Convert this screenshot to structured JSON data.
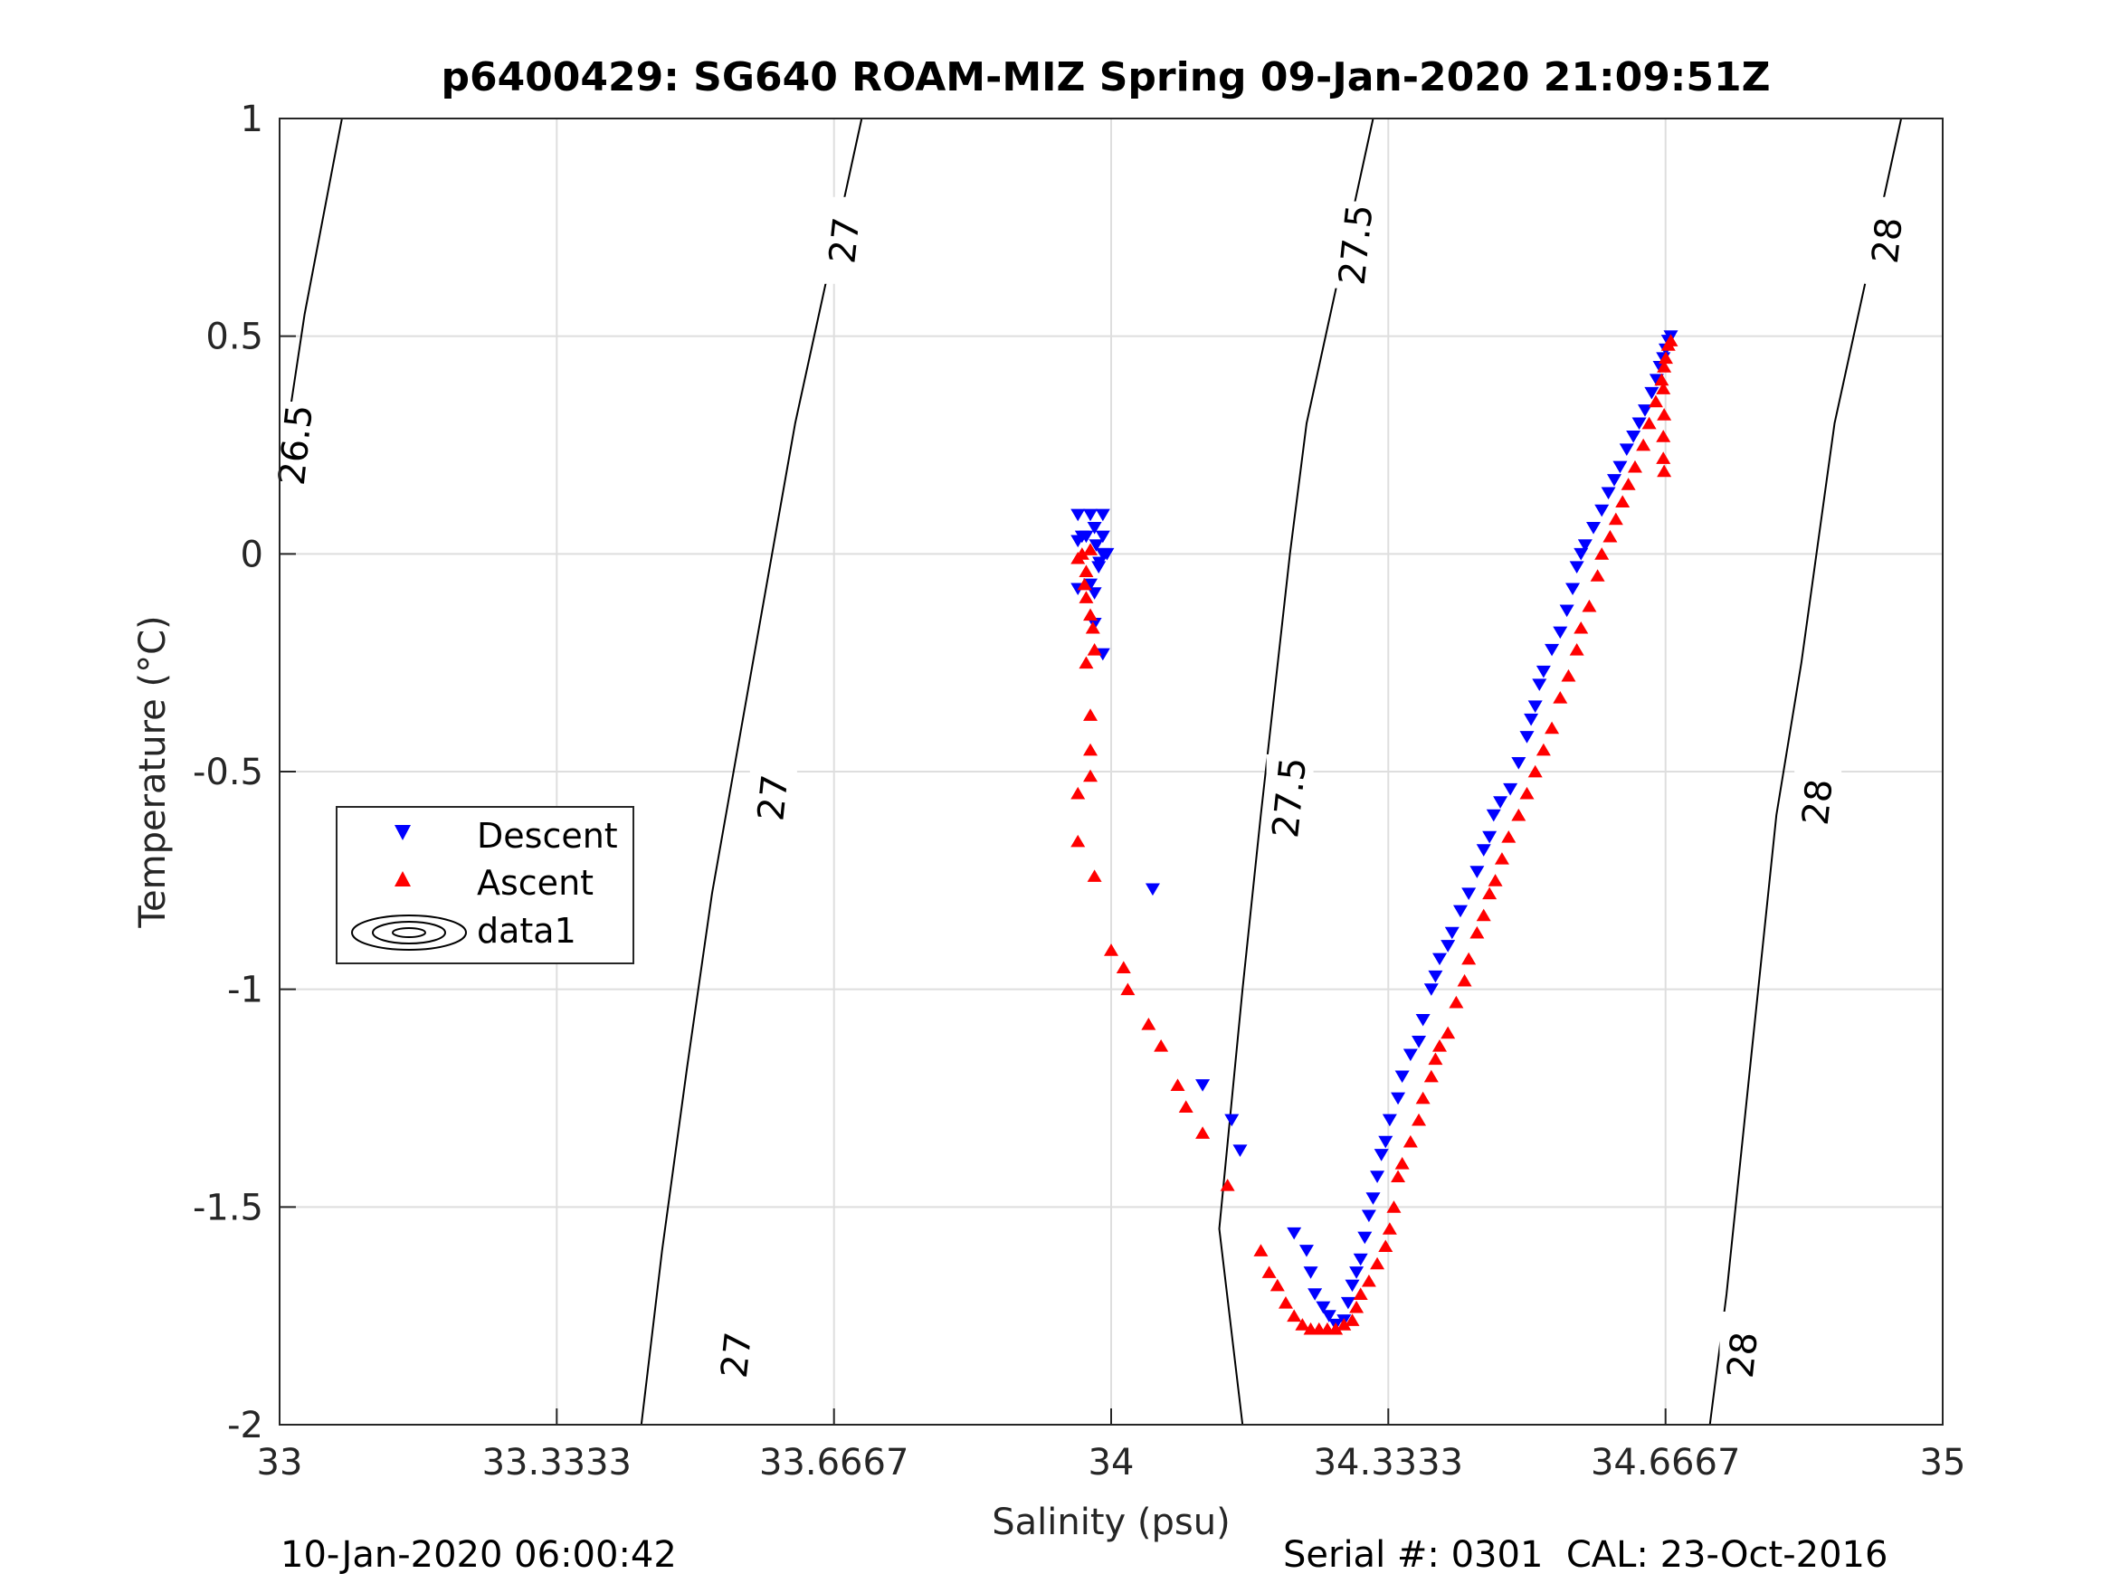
{
  "chart_data": {
    "type": "scatter",
    "title": "p6400429: SG640 ROAM-MIZ Spring 09-Jan-2020 21:09:51Z",
    "xlabel": "Salinity (psu)",
    "ylabel": "Temperature (°C)",
    "xlim": [
      33,
      35
    ],
    "ylim": [
      -2,
      1
    ],
    "xticks": [
      "33",
      "33.3333",
      "33.6667",
      "34",
      "34.3333",
      "34.6667",
      "35"
    ],
    "xtick_values": [
      33,
      33.3333,
      33.6667,
      34,
      34.3333,
      34.6667,
      35
    ],
    "yticks": [
      "-2",
      "-1.5",
      "-1",
      "-0.5",
      "0",
      "0.5",
      "1"
    ],
    "ytick_values": [
      -2,
      -1.5,
      -1,
      -0.5,
      0,
      0.5,
      1
    ],
    "grid": true,
    "legend_position": "left",
    "legend": [
      "Descent",
      "Ascent",
      "data1"
    ],
    "contours": [
      {
        "label": "26.5",
        "points": [
          [
            33.075,
            1.0
          ],
          [
            33.03,
            0.55
          ],
          [
            33.0,
            0.17
          ],
          [
            33.0,
            -0.18
          ]
        ],
        "label_at": [
          [
            33.02,
            0.25
          ]
        ]
      },
      {
        "label": "27",
        "points": [
          [
            33.7,
            1.0
          ],
          [
            33.62,
            0.3
          ],
          [
            33.52,
            -0.78
          ],
          [
            33.49,
            -1.18
          ],
          [
            33.46,
            -1.6
          ],
          [
            33.435,
            -2.0
          ]
        ],
        "label_at": [
          [
            33.68,
            0.72
          ],
          [
            33.594,
            -0.56
          ],
          [
            33.55,
            -1.84
          ]
        ]
      },
      {
        "label": "27.5",
        "points": [
          [
            34.315,
            1.0
          ],
          [
            34.235,
            0.3
          ],
          [
            34.215,
            0.0
          ],
          [
            34.18,
            -0.6
          ],
          [
            34.158,
            -1.0
          ],
          [
            34.13,
            -1.55
          ],
          [
            34.158,
            -2.0
          ]
        ],
        "label_at": [
          [
            34.295,
            0.71
          ],
          [
            34.215,
            -0.56
          ]
        ]
      },
      {
        "label": "28",
        "points": [
          [
            34.95,
            1.0
          ],
          [
            34.87,
            0.3
          ],
          [
            34.83,
            -0.25
          ],
          [
            34.8,
            -0.6
          ],
          [
            34.77,
            -1.15
          ],
          [
            34.74,
            -1.7
          ],
          [
            34.72,
            -2.0
          ]
        ],
        "label_at": [
          [
            34.934,
            0.72
          ],
          [
            34.85,
            -0.57
          ],
          [
            34.76,
            -1.84
          ]
        ]
      }
    ],
    "series": [
      {
        "name": "Descent",
        "marker": "triangle-down",
        "color": "#0000ff",
        "points": [
          [
            33.96,
            0.09
          ],
          [
            33.975,
            0.09
          ],
          [
            33.99,
            0.09
          ],
          [
            33.965,
            0.04
          ],
          [
            33.98,
            0.06
          ],
          [
            33.99,
            0.04
          ],
          [
            33.982,
            0.02
          ],
          [
            33.99,
            0.0
          ],
          [
            33.985,
            -0.03
          ],
          [
            33.975,
            -0.07
          ],
          [
            33.98,
            -0.09
          ],
          [
            33.986,
            -0.02
          ],
          [
            33.995,
            0.0
          ],
          [
            33.97,
            0.04
          ],
          [
            33.96,
            0.03
          ],
          [
            33.96,
            -0.08
          ],
          [
            33.98,
            -0.16
          ],
          [
            33.99,
            -0.23
          ],
          [
            34.05,
            -0.77
          ],
          [
            34.11,
            -1.22
          ],
          [
            34.145,
            -1.3
          ],
          [
            34.155,
            -1.37
          ],
          [
            34.22,
            -1.56
          ],
          [
            34.235,
            -1.6
          ],
          [
            34.24,
            -1.65
          ],
          [
            34.245,
            -1.7
          ],
          [
            34.255,
            -1.73
          ],
          [
            34.262,
            -1.75
          ],
          [
            34.27,
            -1.77
          ],
          [
            34.28,
            -1.76
          ],
          [
            34.285,
            -1.72
          ],
          [
            34.29,
            -1.68
          ],
          [
            34.295,
            -1.65
          ],
          [
            34.3,
            -1.62
          ],
          [
            34.305,
            -1.57
          ],
          [
            34.31,
            -1.52
          ],
          [
            34.315,
            -1.48
          ],
          [
            34.32,
            -1.43
          ],
          [
            34.325,
            -1.38
          ],
          [
            34.33,
            -1.35
          ],
          [
            34.335,
            -1.3
          ],
          [
            34.345,
            -1.25
          ],
          [
            34.35,
            -1.2
          ],
          [
            34.36,
            -1.15
          ],
          [
            34.37,
            -1.12
          ],
          [
            34.375,
            -1.07
          ],
          [
            34.385,
            -1.0
          ],
          [
            34.39,
            -0.97
          ],
          [
            34.395,
            -0.93
          ],
          [
            34.405,
            -0.9
          ],
          [
            34.41,
            -0.87
          ],
          [
            34.42,
            -0.82
          ],
          [
            34.43,
            -0.78
          ],
          [
            34.44,
            -0.73
          ],
          [
            34.448,
            -0.68
          ],
          [
            34.455,
            -0.65
          ],
          [
            34.46,
            -0.6
          ],
          [
            34.468,
            -0.57
          ],
          [
            34.48,
            -0.54
          ],
          [
            34.49,
            -0.48
          ],
          [
            34.5,
            -0.42
          ],
          [
            34.505,
            -0.38
          ],
          [
            34.51,
            -0.35
          ],
          [
            34.515,
            -0.3
          ],
          [
            34.52,
            -0.27
          ],
          [
            34.53,
            -0.22
          ],
          [
            34.54,
            -0.18
          ],
          [
            34.548,
            -0.13
          ],
          [
            34.555,
            -0.08
          ],
          [
            34.56,
            -0.03
          ],
          [
            34.565,
            0.0
          ],
          [
            34.57,
            0.02
          ],
          [
            34.58,
            0.06
          ],
          [
            34.59,
            0.1
          ],
          [
            34.598,
            0.14
          ],
          [
            34.605,
            0.17
          ],
          [
            34.612,
            0.2
          ],
          [
            34.62,
            0.24
          ],
          [
            34.628,
            0.27
          ],
          [
            34.635,
            0.3
          ],
          [
            34.642,
            0.33
          ],
          [
            34.65,
            0.37
          ],
          [
            34.656,
            0.4
          ],
          [
            34.66,
            0.43
          ],
          [
            34.664,
            0.45
          ],
          [
            34.667,
            0.47
          ],
          [
            34.67,
            0.49
          ],
          [
            34.673,
            0.5
          ]
        ]
      },
      {
        "name": "Ascent",
        "marker": "triangle-up",
        "color": "#ff0000",
        "points": [
          [
            33.96,
            -0.01
          ],
          [
            33.965,
            0.0
          ],
          [
            33.975,
            0.01
          ],
          [
            33.97,
            -0.04
          ],
          [
            33.968,
            -0.07
          ],
          [
            33.97,
            -0.1
          ],
          [
            33.975,
            -0.14
          ],
          [
            33.978,
            -0.17
          ],
          [
            33.98,
            -0.22
          ],
          [
            33.97,
            -0.25
          ],
          [
            33.975,
            -0.37
          ],
          [
            33.975,
            -0.45
          ],
          [
            33.975,
            -0.51
          ],
          [
            33.96,
            -0.55
          ],
          [
            33.96,
            -0.66
          ],
          [
            33.98,
            -0.74
          ],
          [
            34.0,
            -0.91
          ],
          [
            34.015,
            -0.95
          ],
          [
            34.02,
            -1.0
          ],
          [
            34.045,
            -1.08
          ],
          [
            34.06,
            -1.13
          ],
          [
            34.08,
            -1.22
          ],
          [
            34.09,
            -1.27
          ],
          [
            34.11,
            -1.33
          ],
          [
            34.14,
            -1.45
          ],
          [
            34.18,
            -1.6
          ],
          [
            34.19,
            -1.65
          ],
          [
            34.2,
            -1.68
          ],
          [
            34.21,
            -1.72
          ],
          [
            34.22,
            -1.75
          ],
          [
            34.23,
            -1.77
          ],
          [
            34.24,
            -1.78
          ],
          [
            34.25,
            -1.78
          ],
          [
            34.26,
            -1.78
          ],
          [
            34.27,
            -1.78
          ],
          [
            34.28,
            -1.77
          ],
          [
            34.29,
            -1.76
          ],
          [
            34.295,
            -1.73
          ],
          [
            34.3,
            -1.7
          ],
          [
            34.31,
            -1.67
          ],
          [
            34.32,
            -1.63
          ],
          [
            34.33,
            -1.59
          ],
          [
            34.335,
            -1.55
          ],
          [
            34.34,
            -1.5
          ],
          [
            34.345,
            -1.43
          ],
          [
            34.35,
            -1.4
          ],
          [
            34.36,
            -1.35
          ],
          [
            34.37,
            -1.3
          ],
          [
            34.375,
            -1.25
          ],
          [
            34.385,
            -1.2
          ],
          [
            34.39,
            -1.16
          ],
          [
            34.395,
            -1.13
          ],
          [
            34.405,
            -1.1
          ],
          [
            34.415,
            -1.03
          ],
          [
            34.425,
            -0.98
          ],
          [
            34.43,
            -0.93
          ],
          [
            34.44,
            -0.87
          ],
          [
            34.448,
            -0.83
          ],
          [
            34.455,
            -0.78
          ],
          [
            34.462,
            -0.75
          ],
          [
            34.47,
            -0.7
          ],
          [
            34.478,
            -0.65
          ],
          [
            34.49,
            -0.6
          ],
          [
            34.5,
            -0.55
          ],
          [
            34.51,
            -0.5
          ],
          [
            34.52,
            -0.45
          ],
          [
            34.53,
            -0.4
          ],
          [
            34.54,
            -0.33
          ],
          [
            34.55,
            -0.28
          ],
          [
            34.56,
            -0.22
          ],
          [
            34.565,
            -0.17
          ],
          [
            34.575,
            -0.12
          ],
          [
            34.585,
            -0.05
          ],
          [
            34.59,
            0.0
          ],
          [
            34.6,
            0.04
          ],
          [
            34.607,
            0.08
          ],
          [
            34.615,
            0.12
          ],
          [
            34.622,
            0.16
          ],
          [
            34.63,
            0.2
          ],
          [
            34.64,
            0.25
          ],
          [
            34.647,
            0.3
          ],
          [
            34.655,
            0.35
          ],
          [
            34.662,
            0.4
          ],
          [
            34.667,
            0.45
          ],
          [
            34.67,
            0.48
          ],
          [
            34.673,
            0.49
          ],
          [
            34.665,
            0.43
          ],
          [
            34.664,
            0.38
          ],
          [
            34.665,
            0.32
          ],
          [
            34.664,
            0.27
          ],
          [
            34.664,
            0.22
          ],
          [
            34.665,
            0.19
          ]
        ]
      }
    ]
  },
  "footer": {
    "timestamp": "10-Jan-2020 06:00:42",
    "serial": "Serial #: 0301  CAL: 23-Oct-2016"
  }
}
